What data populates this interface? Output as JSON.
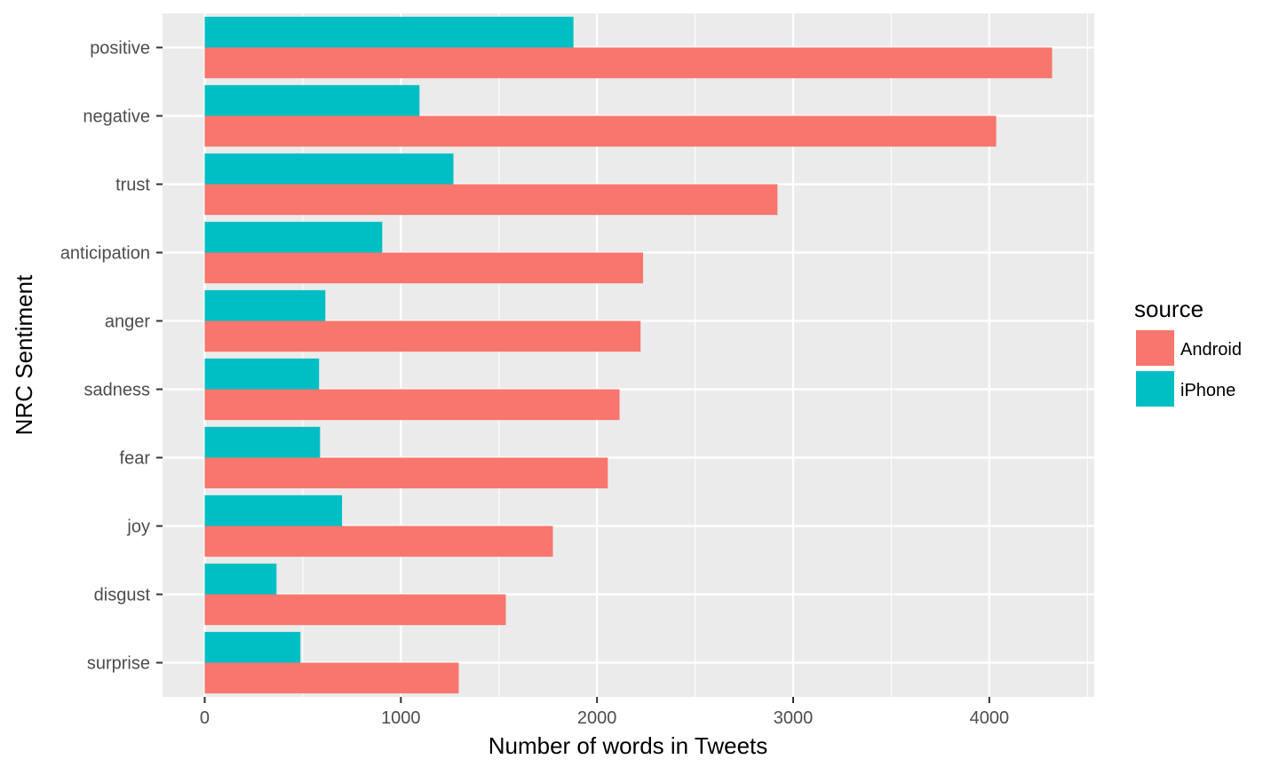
{
  "chart_data": {
    "type": "bar",
    "orientation": "horizontal",
    "categories": [
      "positive",
      "negative",
      "trust",
      "anticipation",
      "anger",
      "sadness",
      "fear",
      "joy",
      "disgust",
      "surprise"
    ],
    "series": [
      {
        "name": "Android",
        "color": "#F8766D",
        "values": [
          4320,
          4035,
          2920,
          2235,
          2222,
          2115,
          2055,
          1775,
          1535,
          1295
        ]
      },
      {
        "name": "iPhone",
        "color": "#00BFC4",
        "values": [
          1880,
          1095,
          1268,
          905,
          615,
          583,
          588,
          700,
          366,
          488
        ]
      }
    ],
    "xlabel": "Number of words in Tweets",
    "ylabel": "NRC Sentiment",
    "xlim": [
      -215,
      4535
    ],
    "x_ticks": [
      "0",
      "1000",
      "2000",
      "3000",
      "4000"
    ],
    "x_tick_values": [
      0,
      1000,
      2000,
      3000,
      4000
    ],
    "grid": true,
    "panel_background": "#EBEBEB",
    "legend": {
      "title": "source",
      "placement": "right",
      "items": [
        "Android",
        "iPhone"
      ]
    }
  }
}
